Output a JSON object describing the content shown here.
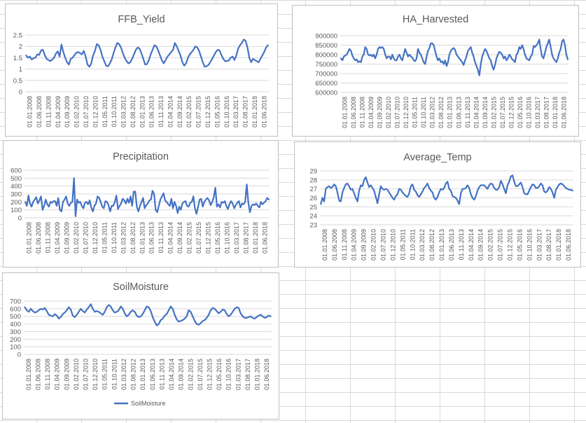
{
  "colors": {
    "series": "#4472c4",
    "gridline": "#d9d9d9",
    "text": "#595959",
    "panel_border": "#bfbfbf",
    "sheet_grid": "#d9d9d9"
  },
  "x_tick_labels": [
    "01.01.2008",
    "01.06.2008",
    "01.11.2008",
    "01.04.2009",
    "01.09.2009",
    "01.02.2010",
    "01.07.2010",
    "01.12.2010",
    "01.05.2011",
    "01.10.2011",
    "01.03.2012",
    "01.08.2012",
    "01.01.2013",
    "01.06.2013",
    "01.11.2013",
    "01.04.2014",
    "01.09.2014",
    "01.02.2015",
    "01.07.2015",
    "01.12.2015",
    "01.05.2016",
    "01.10.2016",
    "01.03.2017",
    "01.08.2017",
    "01.01.2018",
    "01.06.2018"
  ],
  "chart_data": [
    {
      "id": "ffb",
      "type": "line",
      "title": "FFB_Yield",
      "xlabel": "",
      "ylabel": "",
      "ylim": [
        0,
        2.5
      ],
      "y_ticks": [
        "0",
        "0.5",
        "1",
        "1.5",
        "2",
        "2.5"
      ],
      "grid": true,
      "x_range": [
        "2008-01",
        "2018-12"
      ],
      "series": [
        {
          "values": [
            1.6,
            1.5,
            1.55,
            1.42,
            1.48,
            1.5,
            1.65,
            1.62,
            1.82,
            1.85,
            1.62,
            1.45,
            1.4,
            1.35,
            1.42,
            1.5,
            1.68,
            1.78,
            1.55,
            2.08,
            1.75,
            1.5,
            1.3,
            1.2,
            1.45,
            1.5,
            1.62,
            1.72,
            1.75,
            1.7,
            1.65,
            1.8,
            1.55,
            1.2,
            1.1,
            1.25,
            1.6,
            1.8,
            2.1,
            2.05,
            1.85,
            1.55,
            1.35,
            1.15,
            1.12,
            1.25,
            1.42,
            1.7,
            1.95,
            2.15,
            2.1,
            1.95,
            1.7,
            1.5,
            1.35,
            1.25,
            1.3,
            1.45,
            1.65,
            1.85,
            1.95,
            1.9,
            1.7,
            1.45,
            1.2,
            1.22,
            1.4,
            1.65,
            1.85,
            2.05,
            2.0,
            1.82,
            1.6,
            1.38,
            1.25,
            1.4,
            1.55,
            1.65,
            1.75,
            1.85,
            2.15,
            2.0,
            1.8,
            1.6,
            1.3,
            1.15,
            1.25,
            1.5,
            1.65,
            1.75,
            1.85,
            2.0,
            1.95,
            1.8,
            1.55,
            1.3,
            1.1,
            1.12,
            1.18,
            1.3,
            1.45,
            1.6,
            1.75,
            1.85,
            1.82,
            1.62,
            1.45,
            1.35,
            1.35,
            1.38,
            1.5,
            1.55,
            1.4,
            1.6,
            1.9,
            2.05,
            2.15,
            2.3,
            2.25,
            1.95,
            1.5,
            1.3,
            1.45,
            1.4,
            1.35,
            1.3,
            1.45,
            1.6,
            1.75,
            1.95,
            2.05
          ]
        }
      ]
    },
    {
      "id": "ha",
      "type": "line",
      "title": "HA_Harvested",
      "xlabel": "",
      "ylabel": "",
      "ylim": [
        600000,
        900000
      ],
      "y_ticks": [
        "600000",
        "650000",
        "700000",
        "750000",
        "800000",
        "850000",
        "900000"
      ],
      "grid": true,
      "x_range": [
        "2008-01",
        "2018-12"
      ],
      "series": [
        {
          "values": [
            780000,
            770000,
            790000,
            795000,
            800000,
            815000,
            830000,
            820000,
            795000,
            780000,
            770000,
            775000,
            760000,
            765000,
            760000,
            790000,
            800000,
            840000,
            830000,
            800000,
            795000,
            800000,
            790000,
            800000,
            780000,
            800000,
            830000,
            840000,
            835000,
            840000,
            830000,
            800000,
            780000,
            790000,
            790000,
            775000,
            800000,
            780000,
            770000,
            770000,
            790000,
            800000,
            780000,
            770000,
            800000,
            830000,
            810000,
            790000,
            800000,
            790000,
            785000,
            770000,
            765000,
            780000,
            830000,
            810000,
            800000,
            780000,
            760000,
            750000,
            790000,
            820000,
            835000,
            860000,
            860000,
            850000,
            820000,
            790000,
            770000,
            780000,
            760000,
            765000,
            750000,
            770000,
            740000,
            760000,
            800000,
            820000,
            830000,
            835000,
            825000,
            800000,
            790000,
            780000,
            770000,
            760000,
            745000,
            770000,
            790000,
            820000,
            830000,
            840000,
            810000,
            790000,
            760000,
            740000,
            720000,
            690000,
            750000,
            790000,
            810000,
            830000,
            820000,
            800000,
            780000,
            770000,
            740000,
            720000,
            745000,
            780000,
            800000,
            815000,
            810000,
            800000,
            780000,
            790000,
            770000,
            780000,
            800000,
            790000,
            775000,
            770000,
            760000,
            800000,
            810000,
            840000,
            830000,
            850000,
            830000,
            800000,
            780000,
            775000,
            770000,
            790000,
            800000,
            845000,
            840000,
            850000,
            860000,
            880000,
            830000,
            790000,
            780000,
            810000,
            840000,
            860000,
            880000,
            840000,
            800000,
            780000,
            770000,
            760000,
            780000,
            810000,
            830000,
            870000,
            880000,
            850000,
            800000,
            775000
          ]
        }
      ]
    },
    {
      "id": "precip",
      "type": "line",
      "title": "Precipitation",
      "xlabel": "",
      "ylabel": "",
      "ylim": [
        0,
        600
      ],
      "y_ticks": [
        "0",
        "100",
        "200",
        "300",
        "400",
        "500",
        "600"
      ],
      "grid": true,
      "x_range": [
        "2008-01",
        "2018-12"
      ],
      "series": [
        {
          "values": [
            200,
            150,
            280,
            180,
            140,
            200,
            230,
            260,
            180,
            220,
            270,
            100,
            150,
            230,
            170,
            140,
            200,
            190,
            210,
            210,
            150,
            250,
            100,
            80,
            200,
            230,
            270,
            180,
            150,
            190,
            200,
            500,
            20,
            230,
            190,
            200,
            150,
            120,
            190,
            200,
            170,
            220,
            130,
            80,
            150,
            180,
            270,
            250,
            200,
            140,
            120,
            210,
            200,
            160,
            80,
            150,
            150,
            200,
            280,
            110,
            150,
            180,
            240,
            220,
            180,
            240,
            190,
            270,
            150,
            330,
            330,
            140,
            80,
            150,
            200,
            250,
            120,
            160,
            180,
            220,
            230,
            340,
            300,
            100,
            70,
            150,
            230,
            270,
            310,
            220,
            200,
            170,
            150,
            240,
            120,
            200,
            150,
            60,
            140,
            100,
            180,
            200,
            210,
            150,
            140,
            190,
            200,
            270,
            120,
            50,
            140,
            230,
            240,
            140,
            200,
            230,
            250,
            220,
            160,
            200,
            260,
            380,
            140,
            170,
            130,
            200,
            190,
            210,
            150,
            110,
            170,
            210,
            180,
            120,
            160,
            190,
            210,
            130,
            180,
            170,
            200,
            420,
            190,
            70,
            150,
            170,
            160,
            180,
            150,
            130,
            200,
            170,
            190,
            210,
            250,
            230
          ]
        }
      ]
    },
    {
      "id": "temp",
      "type": "line",
      "title": "Average_Temp",
      "xlabel": "",
      "ylabel": "",
      "ylim": [
        23,
        29
      ],
      "y_ticks": [
        "23",
        "24",
        "25",
        "26",
        "27",
        "28",
        "29"
      ],
      "grid": true,
      "x_range": [
        "2008-01",
        "2018-12"
      ],
      "series": [
        {
          "values": [
            25.3,
            26.0,
            25.6,
            27.0,
            27.2,
            27.3,
            27.1,
            27.2,
            27.5,
            27.3,
            26.6,
            25.7,
            25.6,
            26.6,
            27.1,
            27.5,
            27.6,
            27.3,
            26.9,
            27.0,
            26.5,
            26.0,
            25.6,
            26.8,
            27.4,
            27.3,
            28.0,
            28.3,
            27.7,
            27.2,
            27.4,
            27.1,
            26.8,
            26.1,
            25.4,
            26.4,
            27.3,
            27.0,
            26.9,
            27.0,
            26.9,
            26.6,
            26.3,
            26.0,
            25.8,
            26.2,
            26.4,
            27.0,
            26.9,
            26.6,
            26.4,
            26.2,
            26.1,
            26.5,
            27.3,
            27.5,
            26.9,
            26.7,
            26.3,
            26.1,
            26.4,
            26.7,
            27.1,
            27.3,
            27.6,
            27.1,
            26.8,
            26.6,
            26.0,
            25.8,
            26.1,
            26.6,
            27.0,
            26.9,
            27.1,
            27.6,
            27.8,
            27.0,
            26.8,
            26.2,
            26.1,
            26.0,
            25.7,
            25.3,
            26.5,
            27.0,
            27.0,
            27.1,
            27.4,
            27.1,
            26.4,
            26.0,
            25.8,
            26.2,
            26.8,
            27.2,
            27.4,
            27.4,
            27.4,
            27.2,
            27.0,
            27.4,
            27.6,
            27.5,
            27.1,
            26.9,
            26.9,
            27.2,
            27.9,
            27.5,
            27.0,
            26.5,
            27.4,
            27.8,
            28.4,
            28.5,
            27.8,
            27.3,
            27.3,
            27.5,
            27.7,
            27.2,
            26.5,
            26.4,
            26.4,
            26.8,
            27.2,
            27.5,
            27.4,
            27.1,
            27.1,
            27.3,
            27.6,
            27.4,
            26.7,
            26.6,
            26.8,
            27.2,
            27.0,
            26.6,
            26.0,
            26.9,
            27.2,
            27.5,
            27.6,
            27.5,
            27.3,
            27.1,
            27.0,
            26.9,
            26.9,
            26.8
          ]
        }
      ]
    },
    {
      "id": "soil",
      "type": "line",
      "title": "SoilMoisture",
      "xlabel": "",
      "ylabel": "",
      "ylim": [
        0,
        700
      ],
      "y_ticks": [
        "0",
        "100",
        "200",
        "300",
        "400",
        "500",
        "600",
        "700"
      ],
      "grid": true,
      "legend": "bottom",
      "x_range": [
        "2008-01",
        "2018-12"
      ],
      "series": [
        {
          "name": "SoilMoisture",
          "values": [
            620,
            580,
            560,
            600,
            570,
            550,
            560,
            580,
            600,
            590,
            610,
            570,
            520,
            510,
            500,
            530,
            510,
            470,
            490,
            530,
            550,
            580,
            620,
            590,
            510,
            490,
            520,
            560,
            600,
            570,
            550,
            590,
            620,
            660,
            600,
            560,
            570,
            560,
            540,
            520,
            560,
            620,
            650,
            630,
            580,
            550,
            560,
            580,
            630,
            600,
            540,
            500,
            520,
            560,
            580,
            560,
            510,
            490,
            500,
            530,
            580,
            630,
            620,
            570,
            490,
            430,
            380,
            400,
            450,
            470,
            510,
            530,
            580,
            630,
            600,
            520,
            460,
            430,
            440,
            450,
            470,
            500,
            580,
            560,
            500,
            440,
            400,
            390,
            410,
            440,
            450,
            480,
            520,
            580,
            610,
            600,
            570,
            540,
            560,
            590,
            580,
            530,
            500,
            520,
            560,
            600,
            620,
            610,
            540,
            500,
            480,
            480,
            490,
            500,
            480,
            470,
            490,
            510,
            520,
            500,
            480,
            490,
            510,
            500
          ]
        }
      ]
    }
  ]
}
